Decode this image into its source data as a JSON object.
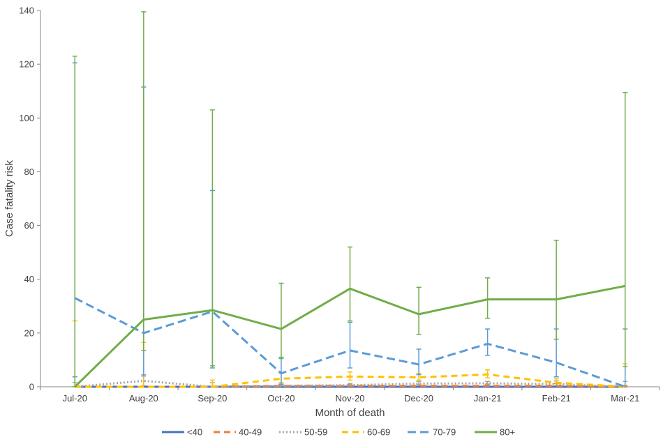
{
  "chart_data": {
    "type": "line",
    "title": "",
    "xlabel": "Month  of death",
    "ylabel": "Case fatality risk",
    "ylim": [
      0,
      140
    ],
    "yticks": [
      0,
      20,
      40,
      60,
      80,
      100,
      120,
      140
    ],
    "grid": false,
    "legend_position": "bottom",
    "categories": [
      "Jul-20",
      "Aug-20",
      "Sep-20",
      "Oct-20",
      "Nov-20",
      "Dec-20",
      "Jan-21",
      "Feb-21",
      "Mar-21"
    ],
    "series": [
      {
        "name": "<40",
        "color": "#4472C4",
        "dash": "solid",
        "values": [
          0,
          0,
          0,
          0,
          0,
          0,
          0,
          0,
          0
        ],
        "lower": [
          0,
          0,
          0,
          0,
          0,
          0,
          0,
          0,
          0
        ],
        "upper": [
          0,
          0,
          0,
          0,
          0.2,
          0.2,
          0.2,
          0.2,
          0
        ]
      },
      {
        "name": "40-49",
        "color": "#ED7D31",
        "dash": "dash",
        "values": [
          0,
          0,
          0,
          0.3,
          0.3,
          0.3,
          0.3,
          0.3,
          0
        ],
        "lower": [
          0,
          0,
          0,
          0,
          0.1,
          0.1,
          0.1,
          0.1,
          0
        ],
        "upper": [
          0,
          0.3,
          0,
          0.8,
          0.8,
          0.8,
          1.0,
          1.2,
          0.5
        ]
      },
      {
        "name": "50-59",
        "color": "#A5A5A5",
        "dash": "dot",
        "values": [
          0,
          2.2,
          0,
          0.4,
          0.6,
          1.2,
          1.3,
          1.0,
          0
        ],
        "lower": [
          0,
          0,
          0,
          0.1,
          0.3,
          0.7,
          0.8,
          0.4,
          0
        ],
        "upper": [
          1.5,
          4.5,
          1.5,
          1.0,
          1.2,
          2.0,
          2.0,
          2.2,
          2.0
        ]
      },
      {
        "name": "60-69",
        "color": "#FFC000",
        "dash": "dash",
        "values": [
          0,
          0,
          0,
          3.0,
          3.8,
          3.5,
          4.6,
          1.5,
          0
        ],
        "lower": [
          0,
          0,
          0,
          1.5,
          2.5,
          2.5,
          3.3,
          0.5,
          0
        ],
        "upper": [
          24.5,
          16.5,
          2.5,
          5.0,
          5.5,
          5.0,
          6.3,
          3.0,
          8.5
        ]
      },
      {
        "name": "70-79",
        "color": "#5B9BD5",
        "dash": "longdash",
        "values": [
          33.0,
          20.0,
          28.0,
          5.0,
          13.5,
          8.3,
          16.0,
          9.0,
          0
        ],
        "lower": [
          3.7,
          4.0,
          7.0,
          1.0,
          7.0,
          4.5,
          11.7,
          3.7,
          0
        ],
        "upper": [
          120.5,
          111.5,
          73.0,
          11.0,
          24.0,
          14.0,
          21.5,
          21.5,
          21.5
        ]
      },
      {
        "name": "80+",
        "color": "#70AD47",
        "dash": "solid",
        "values": [
          0,
          25.0,
          28.5,
          21.5,
          36.5,
          27.0,
          32.5,
          32.5,
          37.5
        ],
        "lower": [
          0,
          13.5,
          7.8,
          10.5,
          24.5,
          19.5,
          25.5,
          17.7,
          7.5
        ],
        "upper": [
          123.0,
          139.5,
          103.0,
          38.5,
          52.0,
          37.0,
          40.5,
          54.5,
          109.5
        ]
      }
    ]
  }
}
